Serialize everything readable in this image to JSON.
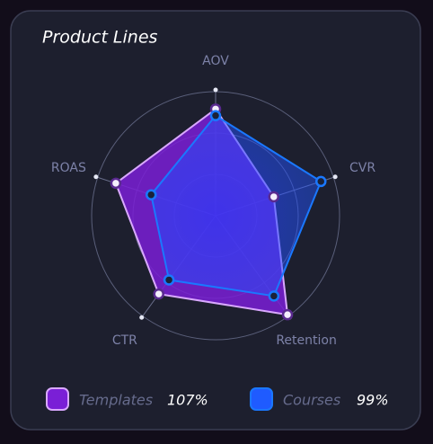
{
  "chart_data": {
    "type": "radar",
    "title": "Product Lines",
    "categories": [
      "AOV",
      "CVR",
      "Retention",
      "CTR",
      "ROAS"
    ],
    "ylim": [
      0,
      150
    ],
    "yticks": [
      50,
      100,
      150
    ],
    "grid": true,
    "series": [
      {
        "name": "Templates",
        "color": "#7a1fd6",
        "stroke": "#d9a8ff",
        "values": [
          129,
          74,
          148,
          117,
          127
        ],
        "summary": "107%"
      },
      {
        "name": "Courses",
        "color": "#1f5bff",
        "stroke": "#1a78ff",
        "values": [
          121,
          134,
          120,
          96,
          82
        ],
        "summary": "99%"
      }
    ]
  }
}
